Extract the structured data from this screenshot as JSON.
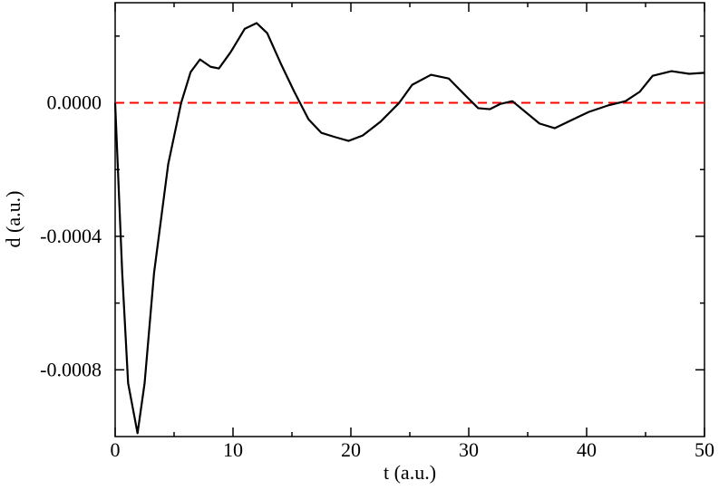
{
  "chart_data": {
    "type": "line",
    "xlabel": "t (a.u.)",
    "ylabel": "d (a.u.)",
    "x": [
      0,
      0.6,
      1.1,
      1.9,
      2.5,
      3.3,
      4.5,
      5.6,
      6.4,
      7.2,
      8.1,
      8.8,
      9.8,
      11,
      12,
      12.9,
      14.1,
      15.2,
      16.4,
      17.5,
      18.7,
      19.8,
      21,
      22.5,
      24.1,
      25.2,
      26.8,
      28.3,
      29.8,
      30.8,
      31.8,
      32.7,
      33.7,
      34.8,
      36,
      37.3,
      38.7,
      40.2,
      41.8,
      43.3,
      44.5,
      45.6,
      47.2,
      48.7,
      50
    ],
    "series": [
      {
        "color": "#000000",
        "values": [
          0,
          -0.00051,
          -0.00084,
          -0.00099,
          -0.00084,
          -0.00051,
          -0.000184,
          0,
          9.2e-05,
          0.00013,
          0.000108,
          0.000103,
          0.000152,
          0.000222,
          0.000239,
          0.000209,
          0.000114,
          3.3e-05,
          -4.9e-05,
          -9e-05,
          -0.000103,
          -0.000114,
          -9.8e-05,
          -5.7e-05,
          0,
          5.4e-05,
          8.4e-05,
          7.3e-05,
          1.9e-05,
          -1.6e-05,
          -1.9e-05,
          -3e-06,
          5e-06,
          -2.7e-05,
          -6.2e-05,
          -7.6e-05,
          -5.2e-05,
          -2.7e-05,
          -8e-06,
          5e-06,
          3.3e-05,
          8.1e-05,
          9.5e-05,
          8.7e-05,
          9e-05
        ]
      }
    ],
    "reference_line": {
      "value": 0,
      "color": "#ff0000"
    },
    "xlim": [
      0,
      50
    ],
    "xticks": [
      0,
      10,
      20,
      30,
      40,
      50
    ],
    "xminor": [
      5,
      15,
      25,
      35,
      45
    ],
    "ylim": [
      -0.001,
      0.0003
    ],
    "yticks": [
      {
        "value": -0.0008,
        "label": "-0.0008"
      },
      {
        "value": -0.0004,
        "label": "-0.0004"
      },
      {
        "value": 0,
        "label": "0.0000"
      }
    ],
    "yminor": [
      -0.0006,
      -0.0002,
      0.0002
    ],
    "grid": false
  }
}
